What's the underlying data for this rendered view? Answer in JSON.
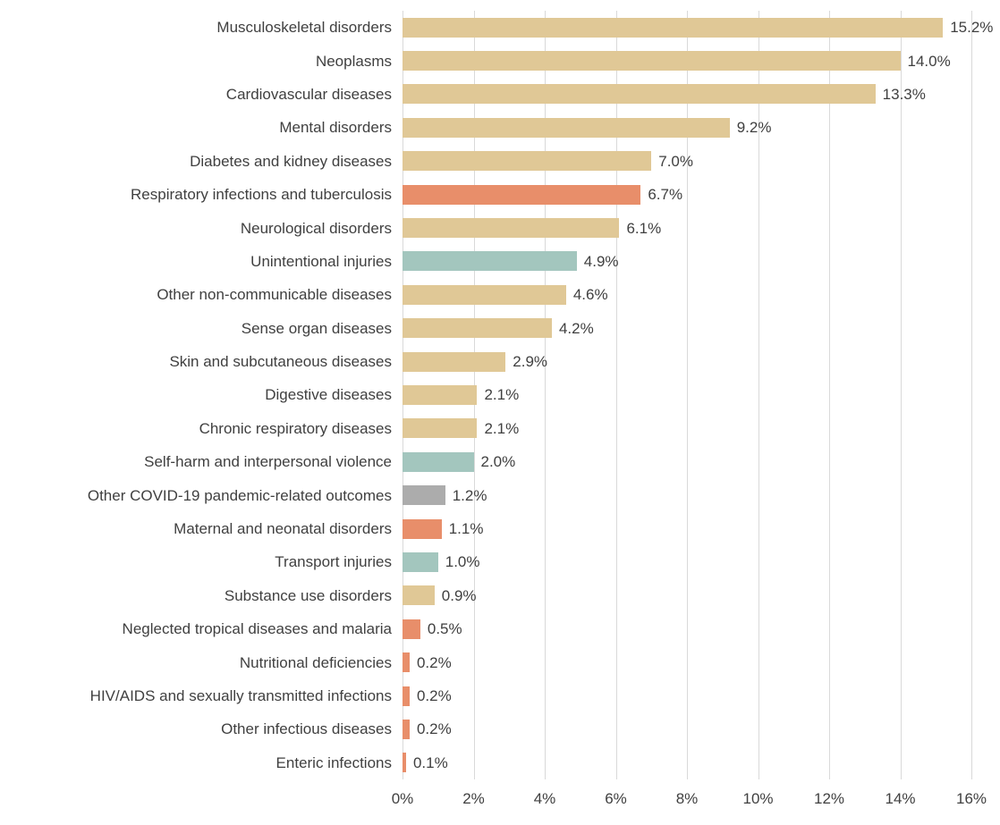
{
  "chart_data": {
    "type": "bar",
    "orientation": "horizontal",
    "title": "",
    "xlabel": "",
    "ylabel": "",
    "xlim": [
      0,
      16
    ],
    "grid": true,
    "grid_color": "#d9d9d9",
    "text_color": "#404040",
    "x_ticks": [
      {
        "value": 0,
        "label": "0%"
      },
      {
        "value": 2,
        "label": "2%"
      },
      {
        "value": 4,
        "label": "4%"
      },
      {
        "value": 6,
        "label": "6%"
      },
      {
        "value": 8,
        "label": "8%"
      },
      {
        "value": 10,
        "label": "10%"
      },
      {
        "value": 12,
        "label": "12%"
      },
      {
        "value": 14,
        "label": "14%"
      },
      {
        "value": 16,
        "label": "16%"
      }
    ],
    "colors": {
      "noncommunicable": "#e0c896",
      "communicable": "#e88e6a",
      "injuries": "#a3c6be",
      "covid": "#acacac"
    },
    "bars": [
      {
        "label": "Musculoskeletal disorders",
        "value": 15.2,
        "display": "15.2%",
        "color": "noncommunicable"
      },
      {
        "label": "Neoplasms",
        "value": 14.0,
        "display": "14.0%",
        "color": "noncommunicable"
      },
      {
        "label": "Cardiovascular diseases",
        "value": 13.3,
        "display": "13.3%",
        "color": "noncommunicable"
      },
      {
        "label": "Mental disorders",
        "value": 9.2,
        "display": "9.2%",
        "color": "noncommunicable"
      },
      {
        "label": "Diabetes and kidney diseases",
        "value": 7.0,
        "display": "7.0%",
        "color": "noncommunicable"
      },
      {
        "label": "Respiratory infections and tuberculosis",
        "value": 6.7,
        "display": "6.7%",
        "color": "communicable"
      },
      {
        "label": "Neurological disorders",
        "value": 6.1,
        "display": "6.1%",
        "color": "noncommunicable"
      },
      {
        "label": "Unintentional injuries",
        "value": 4.9,
        "display": "4.9%",
        "color": "injuries"
      },
      {
        "label": "Other non-communicable diseases",
        "value": 4.6,
        "display": "4.6%",
        "color": "noncommunicable"
      },
      {
        "label": "Sense organ diseases",
        "value": 4.2,
        "display": "4.2%",
        "color": "noncommunicable"
      },
      {
        "label": "Skin and subcutaneous diseases",
        "value": 2.9,
        "display": "2.9%",
        "color": "noncommunicable"
      },
      {
        "label": "Digestive diseases",
        "value": 2.1,
        "display": "2.1%",
        "color": "noncommunicable"
      },
      {
        "label": "Chronic respiratory diseases",
        "value": 2.1,
        "display": "2.1%",
        "color": "noncommunicable"
      },
      {
        "label": "Self-harm and interpersonal violence",
        "value": 2.0,
        "display": "2.0%",
        "color": "injuries"
      },
      {
        "label": "Other COVID-19 pandemic-related outcomes",
        "value": 1.2,
        "display": "1.2%",
        "color": "covid"
      },
      {
        "label": "Maternal and neonatal disorders",
        "value": 1.1,
        "display": "1.1%",
        "color": "communicable"
      },
      {
        "label": "Transport injuries",
        "value": 1.0,
        "display": "1.0%",
        "color": "injuries"
      },
      {
        "label": "Substance use disorders",
        "value": 0.9,
        "display": "0.9%",
        "color": "noncommunicable"
      },
      {
        "label": "Neglected tropical diseases and malaria",
        "value": 0.5,
        "display": "0.5%",
        "color": "communicable"
      },
      {
        "label": "Nutritional deficiencies",
        "value": 0.2,
        "display": "0.2%",
        "color": "communicable"
      },
      {
        "label": "HIV/AIDS and sexually transmitted infections",
        "value": 0.2,
        "display": "0.2%",
        "color": "communicable"
      },
      {
        "label": "Other infectious diseases",
        "value": 0.2,
        "display": "0.2%",
        "color": "communicable"
      },
      {
        "label": "Enteric infections",
        "value": 0.1,
        "display": "0.1%",
        "color": "communicable"
      }
    ]
  }
}
